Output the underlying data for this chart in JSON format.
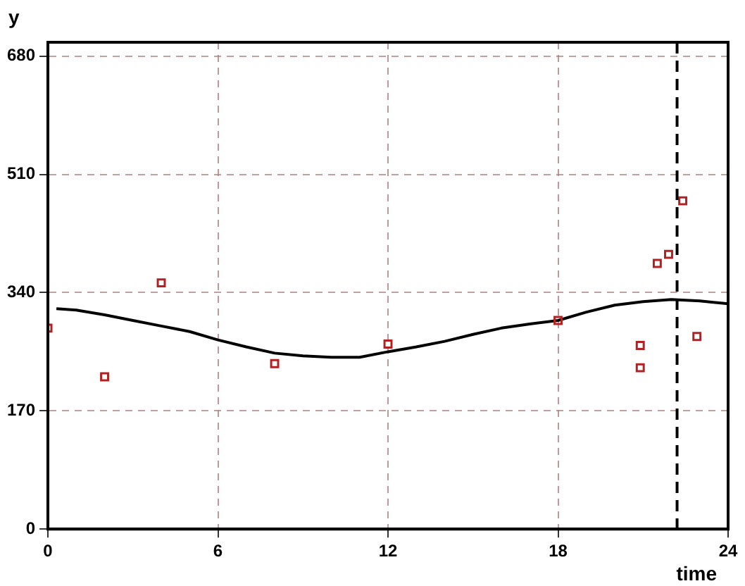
{
  "chart_data": {
    "type": "scatter",
    "xlabel": "time",
    "ylabel": "y",
    "xlim": [
      0,
      24
    ],
    "xticks": [
      0,
      6,
      12,
      18,
      24
    ],
    "ylim": [
      0,
      700
    ],
    "yticks": [
      0,
      170,
      340,
      510,
      680
    ],
    "grid": true,
    "legend": false,
    "series": [
      {
        "color": "#b22222",
        "marker": "square",
        "x": [
          0,
          2,
          4,
          8,
          12,
          18,
          20.9,
          20.9,
          21.5,
          21.9,
          22.4,
          22.9
        ],
        "values": [
          289,
          219,
          354,
          238,
          266,
          300,
          264,
          232,
          382,
          395,
          472,
          277
        ]
      },
      {
        "type": "line",
        "color": "#000000",
        "marker": "none",
        "line_style": "solid",
        "x": [
          0.3,
          1,
          2,
          3,
          4,
          5,
          6,
          7,
          8,
          9,
          10,
          11,
          12,
          13,
          14,
          15,
          16,
          17,
          18,
          19,
          20,
          21,
          22,
          23,
          24
        ],
        "values": [
          317,
          315,
          308,
          300,
          292,
          284,
          272,
          262,
          253,
          249,
          247,
          247,
          255,
          262,
          270,
          280,
          289,
          295,
          300,
          312,
          322,
          327,
          330,
          328,
          324
        ]
      }
    ],
    "ref_lines": [
      {
        "axis": "x",
        "value": 22.2,
        "color": "#000000",
        "line_style": "dashed"
      }
    ]
  }
}
